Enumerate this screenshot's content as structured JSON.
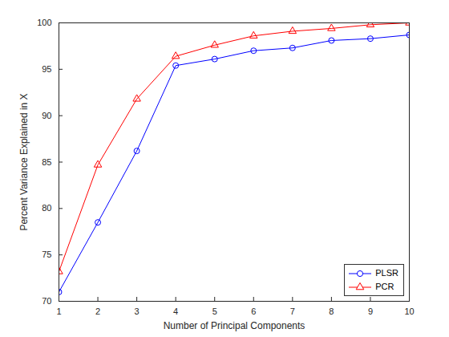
{
  "chart_data": {
    "type": "line",
    "xlabel": "Number of Principal Components",
    "ylabel": "Percent Variance Explained in X",
    "x": [
      1,
      2,
      3,
      4,
      5,
      6,
      7,
      8,
      9,
      10
    ],
    "series": [
      {
        "name": "PLSR",
        "color": "#0000ff",
        "marker": "circle",
        "values": [
          71.0,
          78.5,
          86.2,
          95.4,
          96.1,
          97.0,
          97.3,
          98.1,
          98.3,
          98.7
        ]
      },
      {
        "name": "PCR",
        "color": "#ff0000",
        "marker": "triangle",
        "values": [
          73.2,
          84.7,
          91.8,
          96.4,
          97.6,
          98.6,
          99.1,
          99.4,
          99.8,
          100.0
        ]
      }
    ],
    "xlim": [
      1,
      10
    ],
    "ylim": [
      70,
      100
    ],
    "xticks": [
      1,
      2,
      3,
      4,
      5,
      6,
      7,
      8,
      9,
      10
    ],
    "yticks": [
      70,
      75,
      80,
      85,
      90,
      95,
      100
    ],
    "grid": false,
    "legend": "lower right"
  }
}
